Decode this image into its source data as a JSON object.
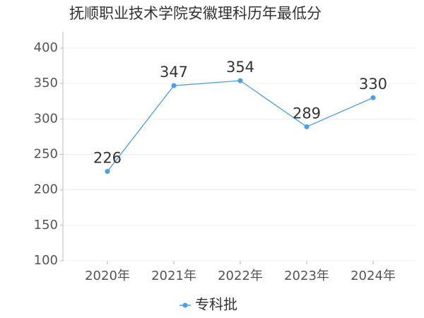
{
  "chart_data": {
    "type": "line",
    "title": "抚顺职业技术学院安徽理科历年最低分",
    "categories": [
      "2020年",
      "2021年",
      "2022年",
      "2023年",
      "2024年"
    ],
    "series": [
      {
        "name": "专科批",
        "color": "#4a9fe8",
        "values": [
          226,
          347,
          354,
          289,
          330
        ]
      }
    ],
    "ylim": [
      100,
      400
    ],
    "yticks": [
      100,
      150,
      200,
      250,
      300,
      350,
      400
    ],
    "grid": true
  }
}
